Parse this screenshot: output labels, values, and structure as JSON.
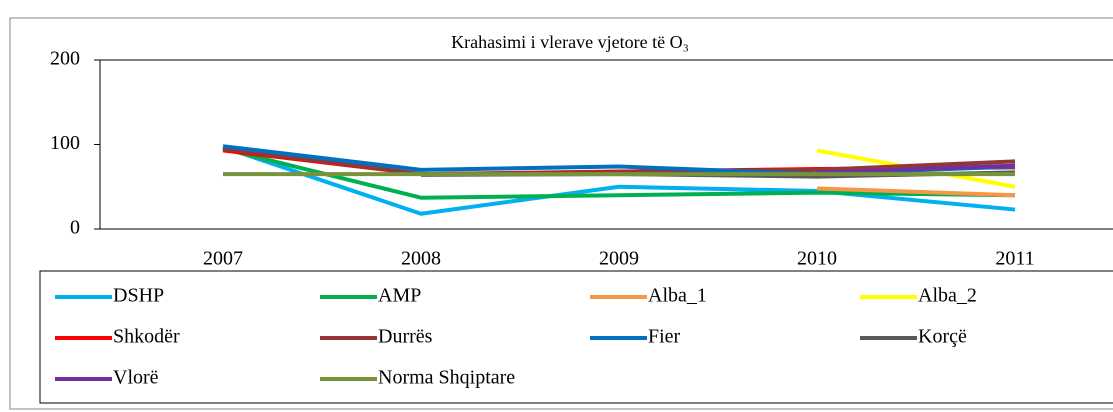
{
  "chart_data": {
    "type": "line",
    "title": "Krahasimi i vlerave vjetore të O₃",
    "categories": [
      "2007",
      "2008",
      "2009",
      "2010",
      "2011"
    ],
    "ylim": [
      0,
      200
    ],
    "yticks": [
      0,
      100,
      200
    ],
    "grid": false,
    "legend": "bottom",
    "series": [
      {
        "name": "DSHP",
        "color": "#00b0f0",
        "values": [
          97,
          18,
          50,
          45,
          23
        ]
      },
      {
        "name": "AMP",
        "color": "#00b050",
        "values": [
          95,
          37,
          40,
          43,
          40
        ]
      },
      {
        "name": "Alba_1",
        "color": "#f79646",
        "values": [
          null,
          null,
          null,
          48,
          40
        ]
      },
      {
        "name": "Alba_2",
        "color": "#ffff00",
        "values": [
          null,
          null,
          null,
          93,
          50
        ]
      },
      {
        "name": "Shkodër",
        "color": "#ff0000",
        "values": [
          93,
          65,
          68,
          71,
          73
        ]
      },
      {
        "name": "Durrës",
        "color": "#943634",
        "values": [
          95,
          65,
          67,
          70,
          80
        ]
      },
      {
        "name": "Fier",
        "color": "#0070c0",
        "values": [
          98,
          70,
          74,
          65,
          74
        ]
      },
      {
        "name": "Korçë",
        "color": "#595959",
        "values": [
          null,
          64,
          65,
          62,
          67
        ]
      },
      {
        "name": "Vlorë",
        "color": "#7030a0",
        "values": [
          null,
          null,
          null,
          67,
          75
        ]
      },
      {
        "name": "Norma Shqiptare",
        "color": "#77933c",
        "values": [
          65,
          65,
          65,
          65,
          65
        ]
      }
    ]
  }
}
